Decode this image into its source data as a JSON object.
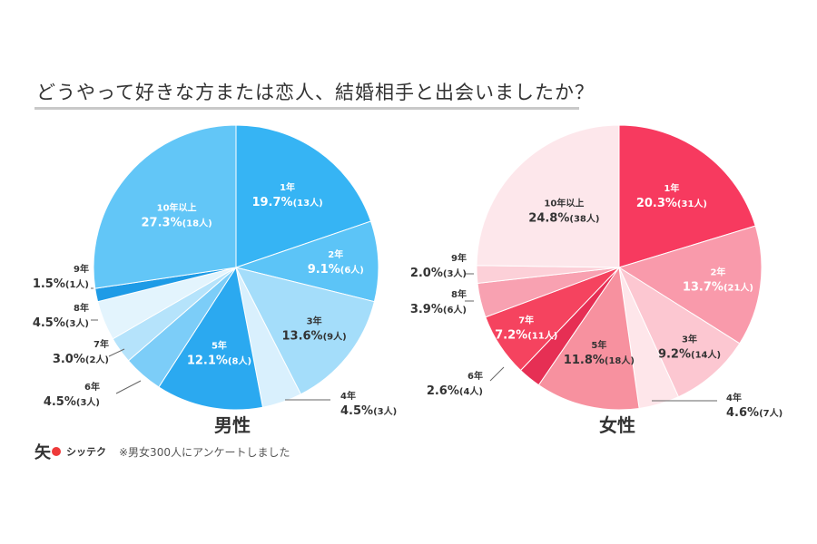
{
  "title": "どうやって好きな方または恋人、結婚相手と出会いましたか？",
  "footer": {
    "logo_text": "シッテク",
    "logo_mark": "矢",
    "note": "※男女300人にアンケートしました"
  },
  "chart_data": [
    {
      "type": "pie",
      "title": "男性",
      "slices": [
        {
          "label": "1年",
          "value": 19.7,
          "count": "(13人)",
          "color": "#36b4f4",
          "text_color": "#ffffff"
        },
        {
          "label": "2年",
          "value": 9.1,
          "count": "(6人)",
          "color": "#5cc4f7",
          "text_color": "#ffffff"
        },
        {
          "label": "3年",
          "value": 13.6,
          "count": "(9人)",
          "color": "#a4ddfa",
          "text_color": "#333333"
        },
        {
          "label": "4年",
          "value": 4.5,
          "count": "(3人)",
          "color": "#d9f0fd",
          "text_color": "#333333"
        },
        {
          "label": "5年",
          "value": 12.1,
          "count": "(8人)",
          "color": "#2ba9f0",
          "text_color": "#ffffff"
        },
        {
          "label": "6年",
          "value": 4.5,
          "count": "(3人)",
          "color": "#7ccdf8",
          "text_color": "#333333"
        },
        {
          "label": "7年",
          "value": 3.0,
          "count": "(2人)",
          "color": "#b5e3fb",
          "text_color": "#333333"
        },
        {
          "label": "8年",
          "value": 4.5,
          "count": "(3人)",
          "color": "#e3f4fd",
          "text_color": "#333333"
        },
        {
          "label": "9年",
          "value": 1.5,
          "count": "(1人)",
          "color": "#1e9be6",
          "text_color": "#333333"
        },
        {
          "label": "10年以上",
          "value": 27.3,
          "count": "(18人)",
          "color": "#62c6f7",
          "text_color": "#ffffff"
        }
      ]
    },
    {
      "type": "pie",
      "title": "女性",
      "slices": [
        {
          "label": "1年",
          "value": 20.3,
          "count": "(31人)",
          "color": "#f73a5f",
          "text_color": "#ffffff"
        },
        {
          "label": "2年",
          "value": 13.7,
          "count": "(21人)",
          "color": "#f99aab",
          "text_color": "#ffffff"
        },
        {
          "label": "3年",
          "value": 9.2,
          "count": "(14人)",
          "color": "#fcc7d1",
          "text_color": "#333333"
        },
        {
          "label": "4年",
          "value": 4.6,
          "count": "(7人)",
          "color": "#fee6ea",
          "text_color": "#333333"
        },
        {
          "label": "5年",
          "value": 11.8,
          "count": "(18人)",
          "color": "#f7919f",
          "text_color": "#333333"
        },
        {
          "label": "6年",
          "value": 2.6,
          "count": "(4人)",
          "color": "#e62f54",
          "text_color": "#333333"
        },
        {
          "label": "7年",
          "value": 7.2,
          "count": "(11人)",
          "color": "#f5435f",
          "text_color": "#ffffff"
        },
        {
          "label": "8年",
          "value": 3.9,
          "count": "(6人)",
          "color": "#f8a1b1",
          "text_color": "#333333"
        },
        {
          "label": "9年",
          "value": 2.0,
          "count": "(3人)",
          "color": "#fcd0d8",
          "text_color": "#333333"
        },
        {
          "label": "10年以上",
          "value": 24.8,
          "count": "(38人)",
          "color": "#fde7eb",
          "text_color": "#333333"
        }
      ]
    }
  ]
}
